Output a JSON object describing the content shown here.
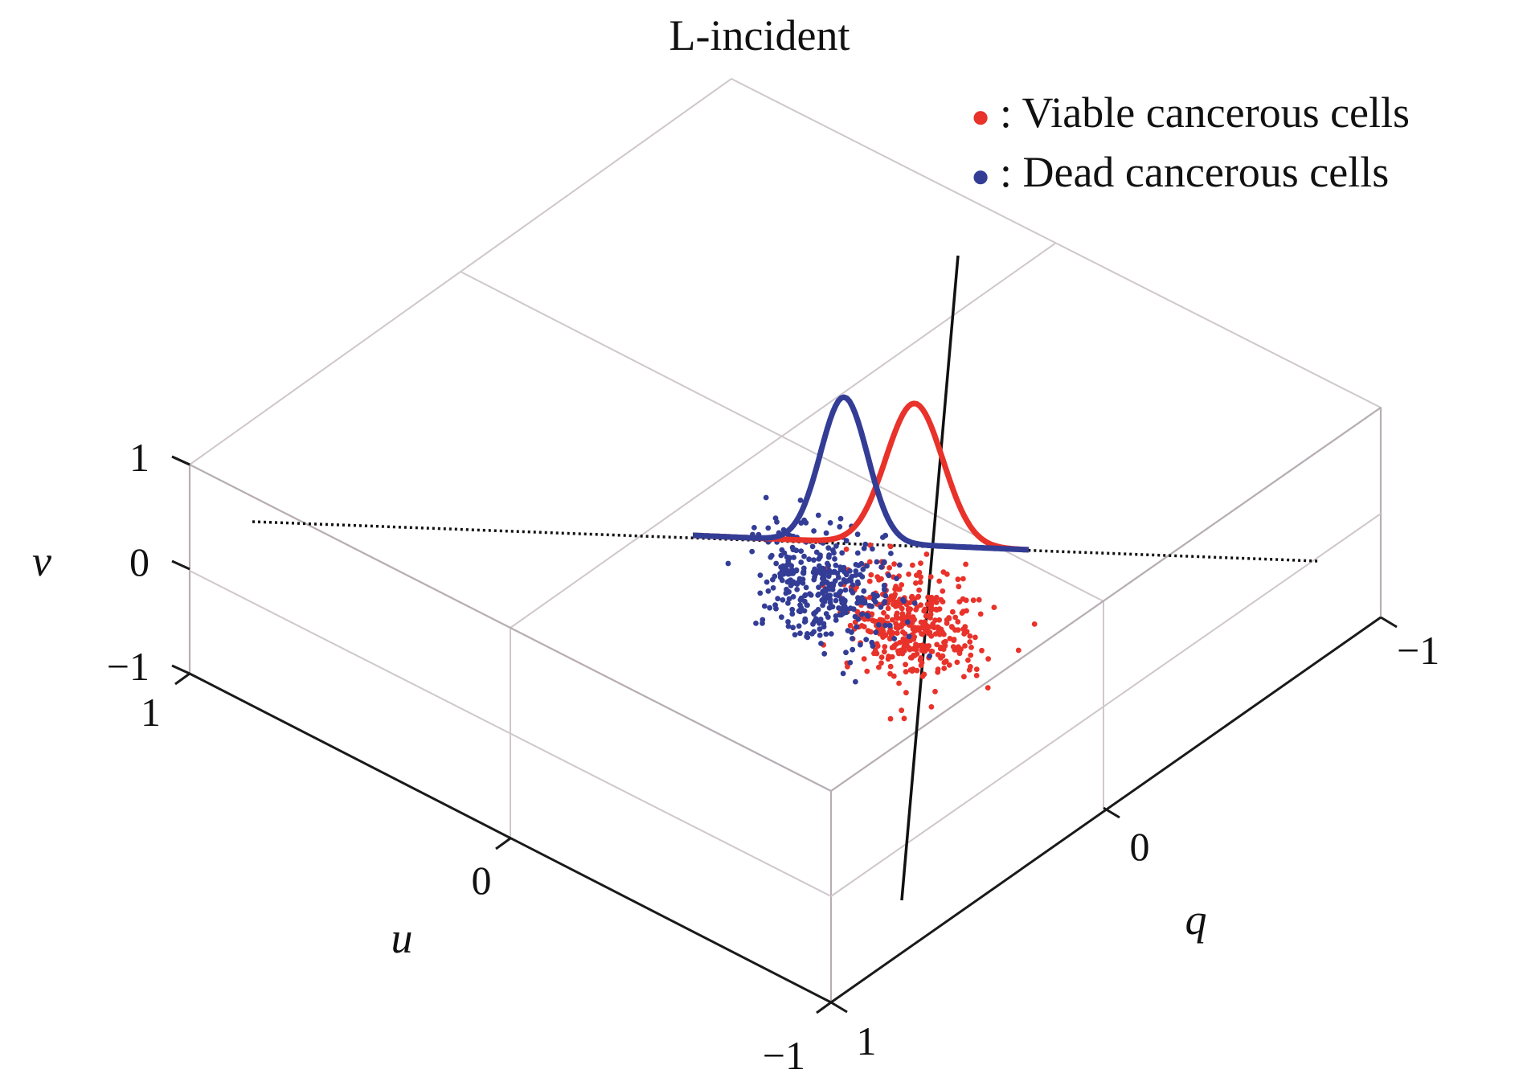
{
  "chart_data": {
    "type": "scatter",
    "title": "L-incident",
    "axes": {
      "u": {
        "label": "u",
        "ticks": [
          "1",
          "0",
          "−1"
        ],
        "range": [
          -1,
          1
        ]
      },
      "q": {
        "label": "q",
        "ticks": [
          "1",
          "0",
          "−1"
        ],
        "range": [
          -1,
          1
        ]
      },
      "v": {
        "label": "v",
        "ticks": [
          "1",
          "0",
          "−1"
        ],
        "range": [
          -1,
          1
        ]
      }
    },
    "legend": {
      "placement": "top-right",
      "entries": [
        {
          "marker": "●",
          "label": ": Viable cancerous cells",
          "color": "#e8322a"
        },
        {
          "marker": "●",
          "label": ": Dead cancerous cells",
          "color": "#333d96"
        }
      ]
    },
    "series": [
      {
        "name": "Viable cancerous cells",
        "color": "#e8322a",
        "center": {
          "u": -0.35,
          "q": -0.05,
          "v": -0.35
        },
        "spread": {
          "u": 0.09,
          "q": 0.06,
          "v": 0.22
        },
        "count": 420
      },
      {
        "name": "Dead cancerous cells",
        "color": "#333d96",
        "center": {
          "u": -0.12,
          "q": 0.0,
          "v": -0.25
        },
        "spread": {
          "u": 0.09,
          "q": 0.06,
          "v": 0.22
        },
        "count": 360
      }
    ],
    "density_curves": [
      {
        "color": "#e8322a",
        "peak_q": -0.25,
        "height": 1.0
      },
      {
        "color": "#333d96",
        "peak_q": -0.02,
        "height": 1.0
      }
    ],
    "grid": true
  }
}
